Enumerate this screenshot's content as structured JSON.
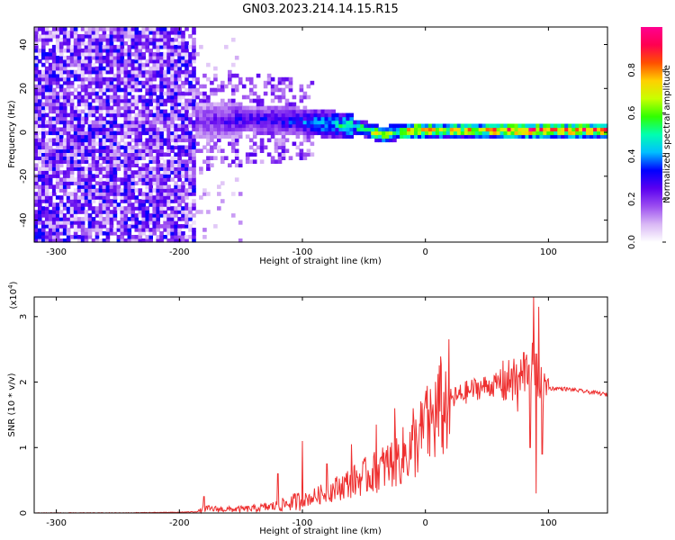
{
  "title": "GN03.2023.214.14.15.R15",
  "chart_data": [
    {
      "type": "heatmap",
      "xlabel": "Height of straight line (km)",
      "ylabel": "Frequency (Hz)",
      "xlim": [
        -318,
        148
      ],
      "ylim": [
        -50,
        48
      ],
      "xticks": [
        -300,
        -200,
        -100,
        0,
        100
      ],
      "yticks": [
        -40,
        -20,
        0,
        20,
        40
      ],
      "colorbar": {
        "label": "Normalized spectral amplitude",
        "range": [
          0,
          1
        ],
        "ticks": [
          "0.0",
          "0.2",
          "0.4",
          "0.6",
          "0.8"
        ],
        "colors": [
          "#ffffff",
          "#d9b8f5",
          "#9b4df0",
          "#5a00f0",
          "#0000ff",
          "#00bfff",
          "#00ffb0",
          "#30ff00",
          "#c8ff00",
          "#ffd000",
          "#ff5000",
          "#ff0050",
          "#ff0090"
        ]
      },
      "band_profile": {
        "x": [
          -185,
          -150,
          -120,
          -100,
          -80,
          -60,
          -45,
          -35,
          -25,
          -10,
          0,
          20,
          50,
          80,
          100,
          130,
          148
        ],
        "center_hz": [
          5,
          6,
          6,
          5,
          4,
          3,
          1,
          -1,
          0,
          1,
          1,
          1,
          1,
          1,
          1,
          1,
          1
        ],
        "peak_amplitude": [
          0.22,
          0.28,
          0.32,
          0.38,
          0.48,
          0.55,
          0.62,
          0.75,
          0.68,
          0.8,
          0.85,
          0.78,
          0.82,
          0.95,
          0.88,
          0.9,
          0.85
        ]
      },
      "noise_region_x": [
        -318,
        -188
      ]
    },
    {
      "type": "line",
      "xlabel": "Height of straight line (km)",
      "ylabel": "SNR (10 * v/v)",
      "multiplier_label": "(x10",
      "multiplier_exp": "4",
      "multiplier_close": ")",
      "xlim": [
        -318,
        148
      ],
      "ylim": [
        0,
        3.3
      ],
      "xticks": [
        -300,
        -200,
        -100,
        0,
        100
      ],
      "yticks": [
        0,
        1,
        2,
        3
      ],
      "color": "#ee3030",
      "series": [
        {
          "x": [
            -318,
            -250,
            -200,
            -185,
            -180,
            -160,
            -140,
            -120,
            -100,
            -80,
            -60,
            -40,
            -20,
            -10,
            0,
            10,
            20,
            30,
            40,
            50,
            60,
            70,
            80,
            85,
            90,
            95,
            100,
            110,
            120,
            130,
            140,
            148
          ],
          "y": [
            0.0,
            0.0,
            0.01,
            0.02,
            0.06,
            0.05,
            0.06,
            0.1,
            0.18,
            0.3,
            0.45,
            0.6,
            0.8,
            0.95,
            1.2,
            1.45,
            1.7,
            1.8,
            1.88,
            1.92,
            1.95,
            1.97,
            2.05,
            2.3,
            2.1,
            1.8,
            1.9,
            1.9,
            1.88,
            1.85,
            1.83,
            1.8
          ],
          "spikes": [
            {
              "x": -180,
              "y": 0.25
            },
            {
              "x": -120,
              "y": 0.6
            },
            {
              "x": -100,
              "y": 1.1
            },
            {
              "x": -80,
              "y": 0.75
            },
            {
              "x": -60,
              "y": 1.05
            },
            {
              "x": -40,
              "y": 1.35
            },
            {
              "x": -25,
              "y": 1.6
            },
            {
              "x": -10,
              "y": 1.6
            },
            {
              "x": 0,
              "y": 1.75
            },
            {
              "x": 15,
              "y": 1.85
            },
            {
              "x": 70,
              "y": 2.2
            },
            {
              "x": 80,
              "y": 2.45
            },
            {
              "x": 85,
              "y": 2.75
            },
            {
              "x": 88,
              "y": 3.3
            },
            {
              "x": 92,
              "y": 3.15
            },
            {
              "x": 95,
              "y": 2.9
            },
            {
              "x": 100,
              "y": 2.05
            }
          ],
          "dips": [
            {
              "x": 75,
              "y": 1.55
            },
            {
              "x": 85,
              "y": 1.0
            },
            {
              "x": 90,
              "y": 0.3
            },
            {
              "x": 95,
              "y": 0.9
            }
          ]
        }
      ]
    }
  ]
}
